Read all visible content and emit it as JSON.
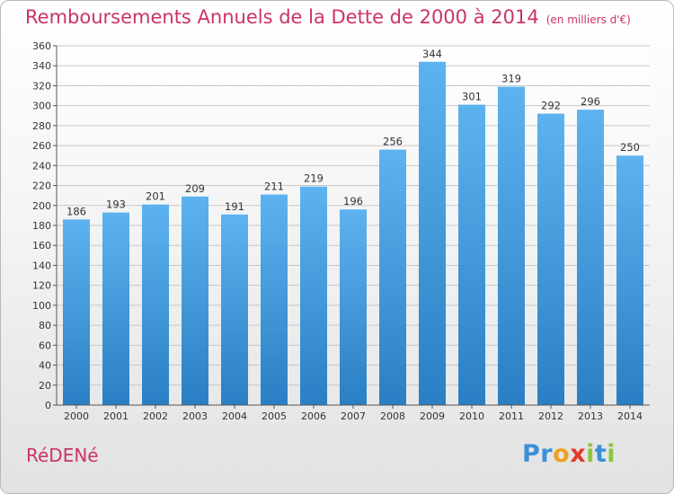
{
  "title": "Remboursements Annuels de la Dette de 2000 à 2014",
  "unit": "(en milliers d'€)",
  "commune": "RéDENé",
  "logo": {
    "text": "Proxiti",
    "letters": [
      {
        "ch": "P",
        "color": "#3a8fd8"
      },
      {
        "ch": "r",
        "color": "#3a8fd8"
      },
      {
        "ch": "o",
        "color": "#f0a020"
      },
      {
        "ch": "x",
        "color": "#e23a2a"
      },
      {
        "ch": "i",
        "color": "#8cc63f"
      },
      {
        "ch": "t",
        "color": "#3a8fd8"
      },
      {
        "ch": "i",
        "color": "#8cc63f"
      }
    ]
  },
  "colors": {
    "title": "#cc3366",
    "bar_top": "#5db3ef",
    "bar_bottom": "#2a7fc4",
    "grid": "#c8c8c8"
  },
  "chart_data": {
    "type": "bar",
    "title": "Remboursements Annuels de la Dette de 2000 à 2014",
    "subtitle": "(en milliers d'€)",
    "xlabel": "",
    "ylabel": "",
    "categories": [
      "2000",
      "2001",
      "2002",
      "2003",
      "2004",
      "2005",
      "2006",
      "2007",
      "2008",
      "2009",
      "2010",
      "2011",
      "2012",
      "2013",
      "2014"
    ],
    "values": [
      186,
      193,
      201,
      209,
      191,
      211,
      219,
      196,
      256,
      344,
      301,
      319,
      292,
      296,
      250
    ],
    "ylim": [
      0,
      360
    ],
    "yticks": [
      0,
      20,
      40,
      60,
      80,
      100,
      120,
      140,
      160,
      180,
      200,
      220,
      240,
      260,
      280,
      300,
      320,
      340,
      360
    ],
    "grid": true,
    "legend": "none"
  }
}
